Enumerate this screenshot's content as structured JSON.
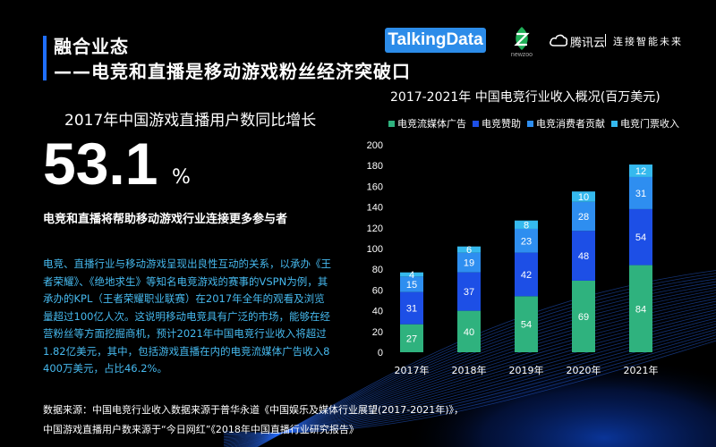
{
  "header": {
    "title_line1": "融合业态",
    "title_line2": "——电竞和直播是移动游戏粉丝经济突破口"
  },
  "logos": {
    "talkingdata": "TalkingData",
    "newzoo": "newzoo",
    "tencent_cloud_name": "腾讯云",
    "tencent_cloud_slogan": "连接智能未来"
  },
  "stat": {
    "heading": "2017年中国游戏直播用户数同比增长",
    "value": "53.1",
    "unit": "%",
    "subheading": "电竞和直播将帮助移动游戏行业连接更多参与者"
  },
  "paragraph": "电竞、直播行业与移动游戏呈现出良性互动的关系，以承办《王者荣耀》、《绝地求生》等知名电竞游戏的赛事的VSPN为例，其承办的KPL（王者荣耀职业联赛）在2017年全年的观看及浏览量超过100亿人次。这说明移动电竞具有广泛的市场，能够在经营粉丝等方面挖掘商机，预计2021年中国电竞行业收入将超过1.82亿美元，其中，包括游戏直播在内的电竞流媒体广告收入8400万美元，占比46.2%。",
  "sources": {
    "line1": "数据来源：中国电竞行业收入数据来源于普华永道《中国娱乐及媒体行业展望(2017-2021年)》，",
    "line2": "中国游戏直播用户数来源于“今日网红”《2018年中国直播行业研究报告》"
  },
  "colors": {
    "accent": "#1f6fff",
    "paragraph": "#46b9ee",
    "series": [
      "#2fb27e",
      "#1d4fe6",
      "#2e8ef0",
      "#35b9ee"
    ]
  },
  "chart_data": {
    "type": "bar",
    "stacked": true,
    "title": "2017-2021年 中国电竞行业收入概况(百万美元)",
    "categories": [
      "2017年",
      "2018年",
      "2019年",
      "2020年",
      "2021年"
    ],
    "series": [
      {
        "name": "电竞流媒体广告",
        "values": [
          27,
          40,
          54,
          69,
          84
        ]
      },
      {
        "name": "电竞赞助",
        "values": [
          31,
          37,
          42,
          48,
          54
        ]
      },
      {
        "name": "电竞消费者贡献",
        "values": [
          15,
          19,
          23,
          28,
          31
        ]
      },
      {
        "name": "电竞门票收入",
        "values": [
          4,
          6,
          8,
          10,
          12
        ]
      }
    ],
    "ylim": [
      0,
      200
    ],
    "yticks": [
      "0",
      "20",
      "40",
      "60",
      "80",
      "100",
      "120",
      "140",
      "160",
      "180",
      "200"
    ],
    "grid": false,
    "legend_position": "top"
  }
}
